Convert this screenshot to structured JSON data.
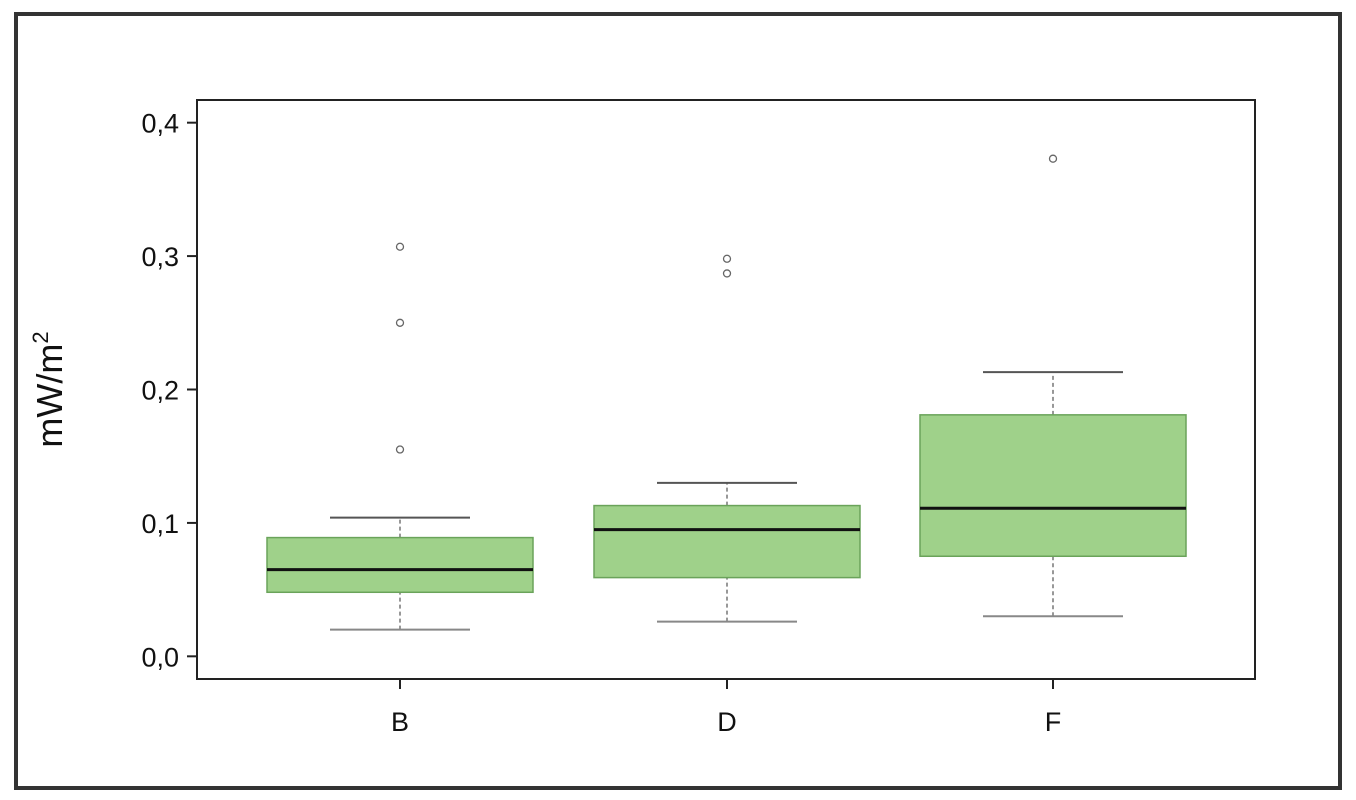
{
  "chart_data": {
    "type": "boxplot",
    "title": "",
    "xlabel": "",
    "ylabel_main": "mW/m",
    "ylabel_sup": "2",
    "ylim": [
      -0.017,
      0.417
    ],
    "yticks": [
      0.0,
      0.1,
      0.2,
      0.3,
      0.4
    ],
    "ytick_labels": [
      "0,0",
      "0,1",
      "0,2",
      "0,3",
      "0,4"
    ],
    "grid": false,
    "box_color": "#9fd18a",
    "box_edge_color": "#6aa35a",
    "median_color": "#111111",
    "categories": [
      "B",
      "D",
      "F"
    ],
    "boxes": [
      {
        "category": "B",
        "whisker_low": 0.02,
        "q1": 0.048,
        "median": 0.065,
        "q3": 0.089,
        "whisker_high": 0.104,
        "outliers": [
          0.155,
          0.25,
          0.307
        ]
      },
      {
        "category": "D",
        "whisker_low": 0.026,
        "q1": 0.059,
        "median": 0.095,
        "q3": 0.113,
        "whisker_high": 0.13,
        "outliers": [
          0.287,
          0.298
        ]
      },
      {
        "category": "F",
        "whisker_low": 0.03,
        "q1": 0.075,
        "median": 0.111,
        "q3": 0.181,
        "whisker_high": 0.213,
        "outliers": [
          0.373
        ]
      }
    ]
  }
}
